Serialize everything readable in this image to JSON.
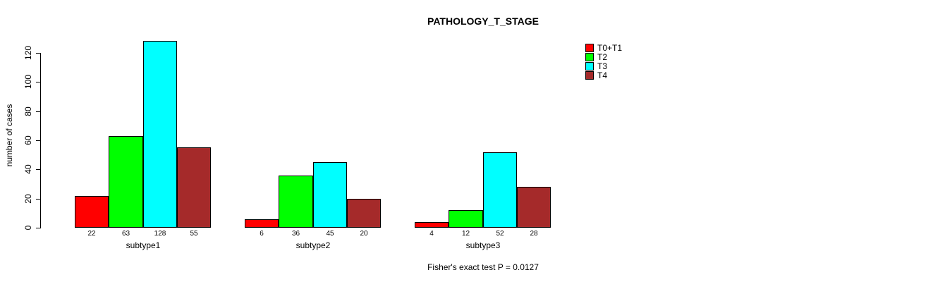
{
  "chart_data": {
    "type": "bar",
    "title": "PATHOLOGY_T_STAGE",
    "xlabel": "",
    "ylabel": "number of cases",
    "categories": [
      "subtype1",
      "subtype2",
      "subtype3"
    ],
    "series": [
      {
        "name": "T0+T1",
        "color": "#FF0000",
        "values": [
          22,
          6,
          4
        ]
      },
      {
        "name": "T2",
        "color": "#00FF00",
        "values": [
          63,
          36,
          12
        ]
      },
      {
        "name": "T3",
        "color": "#00FFFF",
        "values": [
          128,
          45,
          52
        ]
      },
      {
        "name": "T4",
        "color": "#A52A2A",
        "values": [
          55,
          20,
          28
        ]
      }
    ],
    "bar_value_labels": {
      "subtype1": [
        22,
        63,
        128,
        55
      ],
      "subtype2": [
        6,
        36,
        45,
        20
      ],
      "subtype3": [
        4,
        12,
        52,
        28
      ]
    },
    "ylim": [
      0,
      120
    ],
    "yticks": [
      0,
      20,
      40,
      60,
      80,
      100,
      120
    ],
    "grid": false,
    "legend_position": "top-right",
    "annotation": "Fisher's exact test P = 0.0127",
    "bar_border_color": "#000000",
    "background_color": "#FFFFFF"
  }
}
